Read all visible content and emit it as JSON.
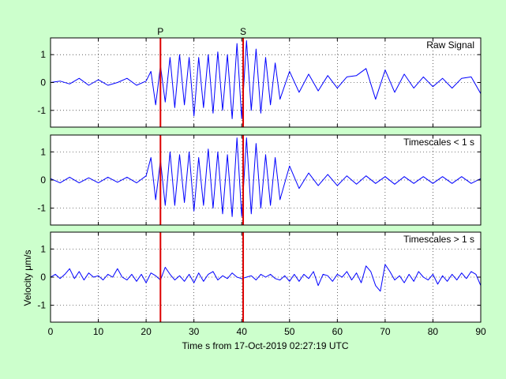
{
  "figure": {
    "background": "#ccffcc",
    "panel_background": "#ffffff",
    "trace_color": "#0000ff",
    "pick_color": "#dd0000",
    "xlabel": "Time s from 17-Oct-2019 02:27:19 UTC",
    "ylabel": "Velocity μm/s"
  },
  "chart_data": [
    {
      "type": "line",
      "title": "Raw Signal",
      "xlim": [
        0,
        90
      ],
      "ylim": [
        -1.6,
        1.6
      ],
      "x_ticks": [
        0,
        10,
        20,
        30,
        40,
        50,
        60,
        70,
        80,
        90
      ],
      "x_tick_labels_shown": false,
      "y_ticks": [
        -1,
        0,
        1
      ],
      "grid": true,
      "series": [
        {
          "x": [
            0,
            2,
            4,
            6,
            8,
            10,
            12,
            14,
            16,
            18,
            20,
            21,
            22,
            23,
            24,
            25,
            26,
            27,
            28,
            29,
            30,
            31,
            32,
            33,
            34,
            35,
            36,
            37,
            38,
            39,
            40,
            41,
            42,
            43,
            44,
            45,
            46,
            47,
            48,
            50,
            52,
            54,
            56,
            58,
            60,
            62,
            64,
            66,
            68,
            70,
            72,
            74,
            76,
            78,
            80,
            82,
            84,
            86,
            88,
            90
          ],
          "y": [
            0.0,
            0.05,
            -0.05,
            0.15,
            -0.1,
            0.1,
            -0.1,
            0.0,
            0.15,
            -0.1,
            0.05,
            0.4,
            -0.8,
            0.6,
            -0.7,
            0.9,
            -0.9,
            1.0,
            -0.8,
            0.9,
            -1.2,
            0.9,
            -0.9,
            1.0,
            -1.1,
            1.1,
            -1.0,
            1.0,
            -1.3,
            1.4,
            -1.3,
            1.5,
            -1.0,
            1.2,
            -1.1,
            0.9,
            -0.8,
            0.7,
            -0.6,
            0.4,
            -0.35,
            0.3,
            -0.3,
            0.25,
            -0.2,
            0.2,
            0.25,
            0.5,
            -0.6,
            0.45,
            -0.35,
            0.3,
            -0.2,
            0.2,
            -0.15,
            0.15,
            -0.2,
            0.15,
            0.2,
            -0.4
          ]
        }
      ],
      "picks": [
        {
          "label": "P",
          "x": 23.0
        },
        {
          "label": "S",
          "x": 40.3
        }
      ]
    },
    {
      "type": "line",
      "title": "Timescales < 1 s",
      "xlim": [
        0,
        90
      ],
      "ylim": [
        -1.6,
        1.6
      ],
      "x_ticks": [
        0,
        10,
        20,
        30,
        40,
        50,
        60,
        70,
        80,
        90
      ],
      "x_tick_labels_shown": false,
      "y_ticks": [
        -1,
        0,
        1
      ],
      "grid": true,
      "series": [
        {
          "x": [
            0,
            2,
            4,
            6,
            8,
            10,
            12,
            14,
            16,
            18,
            20,
            21,
            22,
            23,
            24,
            25,
            26,
            27,
            28,
            29,
            30,
            31,
            32,
            33,
            34,
            35,
            36,
            37,
            38,
            39,
            40,
            41,
            42,
            43,
            44,
            45,
            46,
            47,
            48,
            50,
            52,
            54,
            56,
            58,
            60,
            62,
            64,
            66,
            68,
            70,
            72,
            74,
            76,
            78,
            80,
            82,
            84,
            86,
            88,
            90
          ],
          "y": [
            0.05,
            -0.1,
            0.1,
            -0.1,
            0.08,
            -0.1,
            0.1,
            -0.08,
            0.1,
            -0.1,
            0.15,
            0.8,
            -0.7,
            0.7,
            -0.9,
            1.0,
            -0.9,
            0.9,
            -0.8,
            1.0,
            -1.1,
            0.8,
            -0.9,
            1.1,
            -1.0,
            1.0,
            -1.2,
            0.9,
            -1.3,
            1.5,
            -1.3,
            1.5,
            -1.2,
            1.3,
            -1.0,
            0.9,
            -0.9,
            0.8,
            -0.7,
            0.5,
            -0.3,
            0.25,
            -0.2,
            0.2,
            -0.2,
            0.15,
            -0.15,
            0.15,
            -0.12,
            0.12,
            -0.15,
            0.12,
            -0.12,
            0.12,
            -0.12,
            0.12,
            -0.12,
            0.12,
            -0.12,
            0.05
          ]
        }
      ],
      "picks": [
        {
          "label": "P",
          "x": 23.0
        },
        {
          "label": "S",
          "x": 40.3
        }
      ]
    },
    {
      "type": "line",
      "title": "Timescales > 1 s",
      "xlim": [
        0,
        90
      ],
      "ylim": [
        -1.6,
        1.6
      ],
      "x_ticks": [
        0,
        10,
        20,
        30,
        40,
        50,
        60,
        70,
        80,
        90
      ],
      "x_tick_labels": [
        "0",
        "10",
        "20",
        "30",
        "40",
        "50",
        "60",
        "70",
        "80",
        "90"
      ],
      "y_ticks": [
        -1,
        0,
        1
      ],
      "grid": true,
      "series": [
        {
          "x": [
            0,
            1,
            2,
            3,
            4,
            5,
            6,
            7,
            8,
            9,
            10,
            11,
            12,
            13,
            14,
            15,
            16,
            17,
            18,
            19,
            20,
            21,
            22,
            23,
            24,
            25,
            26,
            27,
            28,
            29,
            30,
            31,
            32,
            33,
            34,
            35,
            36,
            37,
            38,
            39,
            40,
            41,
            42,
            43,
            44,
            45,
            46,
            47,
            48,
            49,
            50,
            51,
            52,
            53,
            54,
            55,
            56,
            57,
            58,
            59,
            60,
            61,
            62,
            63,
            64,
            65,
            66,
            67,
            68,
            69,
            70,
            71,
            72,
            73,
            74,
            75,
            76,
            77,
            78,
            79,
            80,
            81,
            82,
            83,
            84,
            85,
            86,
            87,
            88,
            89,
            90
          ],
          "y": [
            0.0,
            0.1,
            -0.05,
            0.1,
            0.3,
            -0.05,
            0.2,
            -0.1,
            0.15,
            0.0,
            0.05,
            -0.1,
            0.1,
            0.0,
            0.3,
            0.0,
            -0.1,
            0.1,
            -0.15,
            0.1,
            -0.2,
            0.15,
            0.05,
            -0.1,
            0.35,
            0.1,
            -0.1,
            0.05,
            -0.15,
            0.1,
            -0.2,
            0.15,
            -0.15,
            0.1,
            0.2,
            -0.1,
            0.05,
            -0.05,
            0.15,
            0.0,
            -0.05,
            0.0,
            0.05,
            -0.1,
            0.1,
            0.0,
            0.1,
            -0.05,
            -0.1,
            0.05,
            -0.15,
            0.1,
            -0.15,
            0.1,
            -0.05,
            0.2,
            -0.3,
            0.1,
            0.05,
            -0.15,
            0.1,
            0.0,
            0.2,
            -0.1,
            0.15,
            -0.2,
            0.4,
            0.2,
            -0.3,
            -0.5,
            0.45,
            0.2,
            -0.1,
            0.05,
            -0.2,
            0.1,
            -0.15,
            0.2,
            0.0,
            -0.1,
            0.1,
            -0.25,
            0.05,
            -0.15,
            0.1,
            -0.1,
            0.15,
            -0.05,
            0.2,
            0.1,
            -0.3
          ]
        }
      ],
      "picks": [
        {
          "label": "P",
          "x": 23.0
        },
        {
          "label": "S",
          "x": 40.3
        }
      ]
    }
  ]
}
